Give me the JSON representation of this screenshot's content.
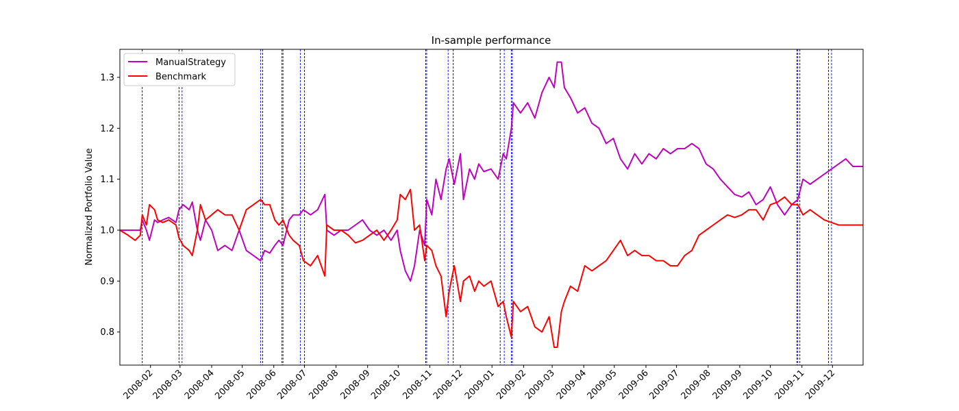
{
  "chart_data": {
    "type": "line",
    "title": "In-sample performance",
    "xlabel": "",
    "ylabel": "Normalized Portfolio Value",
    "xlim": [
      "2008-01-02",
      "2009-12-31"
    ],
    "ylim": [
      0.735,
      1.355
    ],
    "yticks": [
      0.8,
      0.9,
      1.0,
      1.1,
      1.2,
      1.3
    ],
    "ytick_labels": [
      "0.8",
      "0.9",
      "1.0",
      "1.1",
      "1.2",
      "1.3"
    ],
    "xticks": [
      "2008-02-01",
      "2008-03-01",
      "2008-04-01",
      "2008-05-01",
      "2008-06-01",
      "2008-07-01",
      "2008-08-01",
      "2008-09-01",
      "2008-10-01",
      "2008-11-01",
      "2008-12-01",
      "2009-01-01",
      "2009-02-01",
      "2009-03-01",
      "2009-04-01",
      "2009-05-01",
      "2009-06-01",
      "2009-07-01",
      "2009-08-01",
      "2009-09-01",
      "2009-10-01",
      "2009-11-01",
      "2009-12-01"
    ],
    "xtick_labels": [
      "2008-02",
      "2008-03",
      "2008-04",
      "2008-05",
      "2008-06",
      "2008-07",
      "2008-08",
      "2008-09",
      "2008-10",
      "2008-11",
      "2008-12",
      "2009-01",
      "2009-02",
      "2009-03",
      "2009-04",
      "2009-05",
      "2009-06",
      "2009-07",
      "2009-08",
      "2009-09",
      "2009-10",
      "2009-11",
      "2009-12"
    ],
    "legend_position": "top-left",
    "grid": false,
    "series": [
      {
        "name": "ManualStrategy",
        "color": "#bf00bf",
        "x": [
          "2008-01-02",
          "2008-01-10",
          "2008-01-22",
          "2008-01-24",
          "2008-01-28",
          "2008-01-31",
          "2008-02-05",
          "2008-02-08",
          "2008-02-13",
          "2008-02-19",
          "2008-02-26",
          "2008-02-29",
          "2008-03-04",
          "2008-03-10",
          "2008-03-13",
          "2008-03-18",
          "2008-03-21",
          "2008-03-26",
          "2008-04-01",
          "2008-04-07",
          "2008-04-14",
          "2008-04-21",
          "2008-04-28",
          "2008-05-05",
          "2008-05-12",
          "2008-05-19",
          "2008-05-23",
          "2008-05-28",
          "2008-06-02",
          "2008-06-06",
          "2008-06-10",
          "2008-06-16",
          "2008-06-20",
          "2008-06-26",
          "2008-06-30",
          "2008-07-07",
          "2008-07-14",
          "2008-07-21",
          "2008-07-23",
          "2008-07-30",
          "2008-08-06",
          "2008-08-13",
          "2008-08-20",
          "2008-08-27",
          "2008-09-03",
          "2008-09-10",
          "2008-09-17",
          "2008-09-24",
          "2008-09-30",
          "2008-10-03",
          "2008-10-08",
          "2008-10-13",
          "2008-10-17",
          "2008-10-22",
          "2008-10-27",
          "2008-10-29",
          "2008-11-03",
          "2008-11-07",
          "2008-11-12",
          "2008-11-17",
          "2008-11-20",
          "2008-11-25",
          "2008-12-01",
          "2008-12-04",
          "2008-12-10",
          "2008-12-15",
          "2008-12-19",
          "2008-12-24",
          "2008-12-31",
          "2009-01-07",
          "2009-01-12",
          "2009-01-15",
          "2009-01-20",
          "2009-01-22",
          "2009-01-29",
          "2009-02-05",
          "2009-02-12",
          "2009-02-19",
          "2009-02-26",
          "2009-03-03",
          "2009-03-06",
          "2009-03-10",
          "2009-03-13",
          "2009-03-19",
          "2009-03-26",
          "2009-04-02",
          "2009-04-09",
          "2009-04-16",
          "2009-04-23",
          "2009-04-30",
          "2009-05-07",
          "2009-05-14",
          "2009-05-21",
          "2009-05-28",
          "2009-06-04",
          "2009-06-11",
          "2009-06-18",
          "2009-06-25",
          "2009-07-02",
          "2009-07-09",
          "2009-07-16",
          "2009-07-23",
          "2009-07-30",
          "2009-08-06",
          "2009-08-13",
          "2009-08-20",
          "2009-08-27",
          "2009-09-03",
          "2009-09-10",
          "2009-09-17",
          "2009-09-24",
          "2009-10-01",
          "2009-10-08",
          "2009-10-15",
          "2009-10-22",
          "2009-10-28",
          "2009-11-02",
          "2009-11-09",
          "2009-11-16",
          "2009-11-23",
          "2009-11-30",
          "2009-12-07",
          "2009-12-14",
          "2009-12-21",
          "2009-12-31"
        ],
        "y": [
          1.0,
          1.0,
          1.0,
          1.02,
          1.0,
          0.98,
          1.02,
          1.015,
          1.02,
          1.025,
          1.015,
          1.04,
          1.05,
          1.04,
          1.055,
          1.0,
          0.98,
          1.02,
          1.0,
          0.96,
          0.97,
          0.96,
          1.0,
          0.96,
          0.95,
          0.94,
          0.96,
          0.955,
          0.97,
          0.98,
          0.97,
          1.02,
          1.03,
          1.03,
          1.04,
          1.03,
          1.04,
          1.07,
          1.0,
          0.99,
          1.0,
          1.0,
          1.01,
          1.02,
          1.0,
          0.99,
          1.0,
          0.98,
          1.0,
          0.96,
          0.92,
          0.9,
          0.93,
          1.0,
          0.97,
          1.06,
          1.03,
          1.1,
          1.06,
          1.12,
          1.14,
          1.09,
          1.15,
          1.06,
          1.12,
          1.1,
          1.13,
          1.115,
          1.12,
          1.1,
          1.15,
          1.14,
          1.2,
          1.25,
          1.23,
          1.25,
          1.22,
          1.27,
          1.3,
          1.28,
          1.33,
          1.33,
          1.28,
          1.26,
          1.23,
          1.24,
          1.21,
          1.2,
          1.17,
          1.18,
          1.14,
          1.12,
          1.15,
          1.13,
          1.15,
          1.14,
          1.16,
          1.15,
          1.16,
          1.16,
          1.17,
          1.16,
          1.13,
          1.12,
          1.1,
          1.085,
          1.07,
          1.065,
          1.075,
          1.05,
          1.06,
          1.085,
          1.05,
          1.03,
          1.05,
          1.06,
          1.1,
          1.09,
          1.1,
          1.11,
          1.12,
          1.13,
          1.14,
          1.125,
          1.125
        ]
      },
      {
        "name": "Benchmark",
        "color": "#ff0000",
        "x": [
          "2008-01-02",
          "2008-01-10",
          "2008-01-17",
          "2008-01-22",
          "2008-01-24",
          "2008-01-28",
          "2008-01-31",
          "2008-02-05",
          "2008-02-08",
          "2008-02-13",
          "2008-02-19",
          "2008-02-26",
          "2008-02-29",
          "2008-03-04",
          "2008-03-10",
          "2008-03-13",
          "2008-03-18",
          "2008-03-21",
          "2008-03-26",
          "2008-04-01",
          "2008-04-07",
          "2008-04-14",
          "2008-04-21",
          "2008-04-28",
          "2008-05-05",
          "2008-05-12",
          "2008-05-19",
          "2008-05-23",
          "2008-05-28",
          "2008-06-02",
          "2008-06-06",
          "2008-06-10",
          "2008-06-16",
          "2008-06-20",
          "2008-06-26",
          "2008-06-30",
          "2008-07-07",
          "2008-07-14",
          "2008-07-21",
          "2008-07-23",
          "2008-07-30",
          "2008-08-06",
          "2008-08-13",
          "2008-08-20",
          "2008-08-27",
          "2008-09-03",
          "2008-09-10",
          "2008-09-17",
          "2008-09-24",
          "2008-09-30",
          "2008-10-03",
          "2008-10-08",
          "2008-10-13",
          "2008-10-17",
          "2008-10-22",
          "2008-10-27",
          "2008-10-29",
          "2008-11-03",
          "2008-11-07",
          "2008-11-12",
          "2008-11-17",
          "2008-11-20",
          "2008-11-25",
          "2008-12-01",
          "2008-12-04",
          "2008-12-10",
          "2008-12-15",
          "2008-12-19",
          "2008-12-24",
          "2008-12-31",
          "2009-01-07",
          "2009-01-12",
          "2009-01-15",
          "2009-01-20",
          "2009-01-22",
          "2009-01-29",
          "2009-02-05",
          "2009-02-12",
          "2009-02-19",
          "2009-02-26",
          "2009-03-03",
          "2009-03-06",
          "2009-03-10",
          "2009-03-13",
          "2009-03-19",
          "2009-03-26",
          "2009-04-02",
          "2009-04-09",
          "2009-04-16",
          "2009-04-23",
          "2009-04-30",
          "2009-05-07",
          "2009-05-14",
          "2009-05-21",
          "2009-05-28",
          "2009-06-04",
          "2009-06-11",
          "2009-06-18",
          "2009-06-25",
          "2009-07-02",
          "2009-07-09",
          "2009-07-16",
          "2009-07-23",
          "2009-07-30",
          "2009-08-06",
          "2009-08-13",
          "2009-08-20",
          "2009-08-27",
          "2009-09-03",
          "2009-09-10",
          "2009-09-17",
          "2009-09-24",
          "2009-10-01",
          "2009-10-08",
          "2009-10-15",
          "2009-10-22",
          "2009-10-28",
          "2009-11-02",
          "2009-11-09",
          "2009-11-16",
          "2009-11-23",
          "2009-11-30",
          "2009-12-07",
          "2009-12-14",
          "2009-12-21",
          "2009-12-31"
        ],
        "y": [
          1.0,
          0.99,
          0.98,
          0.99,
          1.03,
          1.01,
          1.05,
          1.04,
          1.02,
          1.015,
          1.02,
          1.01,
          0.985,
          0.97,
          0.96,
          0.95,
          1.0,
          1.05,
          1.02,
          1.03,
          1.04,
          1.03,
          1.03,
          1.0,
          1.04,
          1.05,
          1.06,
          1.05,
          1.05,
          1.02,
          1.01,
          1.02,
          0.99,
          0.98,
          0.97,
          0.94,
          0.93,
          0.95,
          0.91,
          1.01,
          1.0,
          1.0,
          0.99,
          0.975,
          0.98,
          0.99,
          1.0,
          0.98,
          1.0,
          1.02,
          1.07,
          1.06,
          1.08,
          1.0,
          1.01,
          0.94,
          0.97,
          0.96,
          0.93,
          0.91,
          0.83,
          0.88,
          0.93,
          0.86,
          0.9,
          0.91,
          0.88,
          0.9,
          0.89,
          0.9,
          0.85,
          0.86,
          0.83,
          0.79,
          0.86,
          0.84,
          0.85,
          0.81,
          0.8,
          0.83,
          0.77,
          0.77,
          0.84,
          0.86,
          0.89,
          0.88,
          0.93,
          0.92,
          0.93,
          0.94,
          0.96,
          0.98,
          0.95,
          0.96,
          0.95,
          0.95,
          0.94,
          0.94,
          0.93,
          0.93,
          0.95,
          0.96,
          0.99,
          1.0,
          1.01,
          1.02,
          1.03,
          1.025,
          1.03,
          1.04,
          1.04,
          1.02,
          1.05,
          1.055,
          1.065,
          1.05,
          1.05,
          1.03,
          1.04,
          1.03,
          1.02,
          1.015,
          1.01,
          1.01,
          1.01,
          1.01
        ]
      }
    ],
    "vlines": [
      {
        "x": "2008-01-24",
        "color": "#000000"
      },
      {
        "x": "2008-02-29",
        "color": "#000000"
      },
      {
        "x": "2008-03-03",
        "color": "#0000ff"
      },
      {
        "x": "2008-05-19",
        "color": "#0000ff"
      },
      {
        "x": "2008-05-21",
        "color": "#000000"
      },
      {
        "x": "2008-06-09",
        "color": "#0000ff"
      },
      {
        "x": "2008-06-10",
        "color": "#000000"
      },
      {
        "x": "2008-06-27",
        "color": "#0000ff"
      },
      {
        "x": "2008-07-01",
        "color": "#000000"
      },
      {
        "x": "2008-10-28",
        "color": "#000000"
      },
      {
        "x": "2008-10-29",
        "color": "#0000ff"
      },
      {
        "x": "2008-11-19",
        "color": "#0000ff"
      },
      {
        "x": "2008-11-24",
        "color": "#000000"
      },
      {
        "x": "2009-01-09",
        "color": "#000000"
      },
      {
        "x": "2009-01-13",
        "color": "#0000ff"
      },
      {
        "x": "2009-01-20",
        "color": "#0000ff"
      },
      {
        "x": "2009-01-21",
        "color": "#000000"
      },
      {
        "x": "2009-10-27",
        "color": "#000000"
      },
      {
        "x": "2009-10-28",
        "color": "#0000ff"
      },
      {
        "x": "2009-10-30",
        "color": "#000000"
      },
      {
        "x": "2009-11-27",
        "color": "#000000"
      },
      {
        "x": "2009-11-30",
        "color": "#0000ff"
      }
    ]
  }
}
